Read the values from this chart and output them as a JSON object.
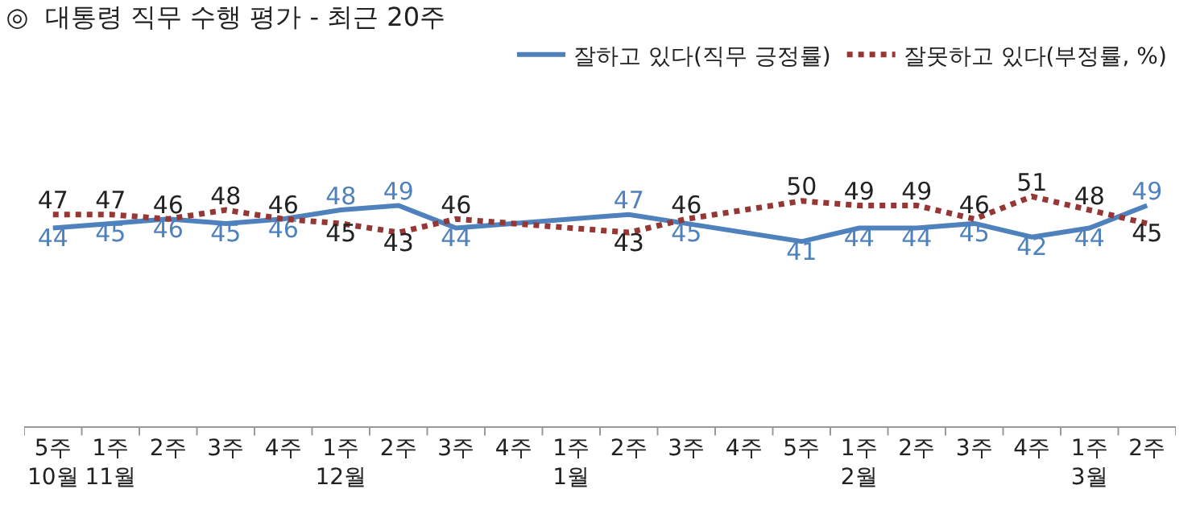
{
  "chart_data": {
    "type": "line",
    "title": "◎  대통령 직무 수행 평가 - 최근 20주",
    "categories": [
      "5주\n10월",
      "1주\n11월",
      "2주",
      "3주",
      "4주",
      "1주\n12월",
      "2주",
      "3주",
      "4주",
      "1주\n1월",
      "2주",
      "3주",
      "4주",
      "5주",
      "1주\n2월",
      "2주",
      "3주",
      "4주",
      "1주\n3월",
      "2주"
    ],
    "series": [
      {
        "name": "잘하고 있다(직무 긍정률)",
        "color": "#4f81bd",
        "line_style": "solid",
        "values": [
          44,
          45,
          46,
          45,
          46,
          48,
          49,
          44,
          null,
          null,
          47,
          45,
          null,
          41,
          44,
          44,
          45,
          42,
          44,
          49
        ]
      },
      {
        "name": "잘못하고 있다(부정률, %)",
        "color": "#953735",
        "line_style": "dotted",
        "values": [
          47,
          47,
          46,
          48,
          46,
          45,
          43,
          46,
          null,
          null,
          43,
          46,
          null,
          50,
          49,
          49,
          46,
          51,
          48,
          45
        ]
      }
    ],
    "data_labels": true,
    "marker": "none",
    "legend": "top right",
    "tick_labels": "x"
  }
}
